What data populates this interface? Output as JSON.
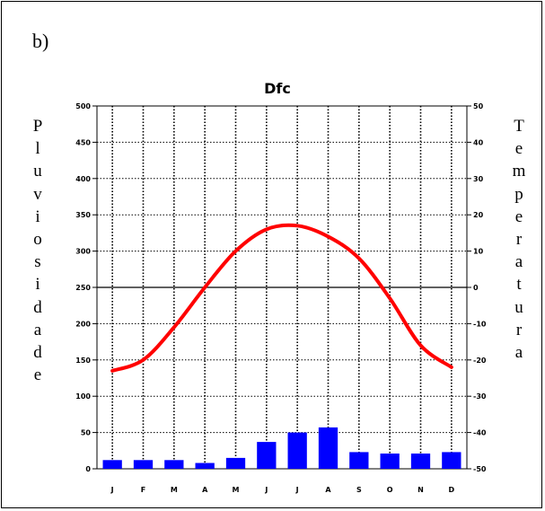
{
  "panel_label": "b)",
  "left_axis_title": "Pluviosidade",
  "right_axis_title": "Temperatura",
  "chart_data": {
    "type": "bar+line",
    "title": "Dfc",
    "categories": [
      "J",
      "F",
      "M",
      "A",
      "M",
      "J",
      "J",
      "A",
      "S",
      "O",
      "N",
      "D"
    ],
    "precipitation": {
      "values": [
        12,
        12,
        12,
        8,
        15,
        37,
        50,
        57,
        23,
        21,
        21,
        23
      ],
      "color": "#0000ff",
      "ylim": [
        0,
        500
      ],
      "ticks": [
        0,
        50,
        100,
        150,
        200,
        250,
        300,
        350,
        400,
        450,
        500
      ]
    },
    "temperature": {
      "values": [
        -23,
        -20,
        -11,
        0,
        10,
        16,
        17,
        14,
        8,
        -3,
        -16,
        -22
      ],
      "color": "#ff0000",
      "ylim": [
        -50,
        50
      ],
      "ticks": [
        -50,
        -40,
        -30,
        -20,
        -10,
        0,
        10,
        20,
        30,
        40,
        50
      ]
    },
    "grid": true
  }
}
